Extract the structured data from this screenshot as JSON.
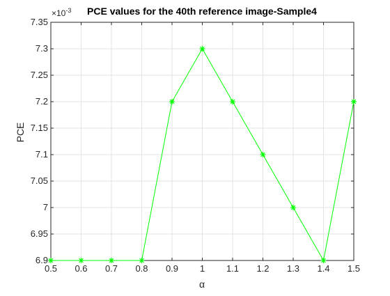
{
  "chart_data": {
    "type": "line",
    "title": "PCE values for the 40th reference image-Sample4",
    "xlabel": "α",
    "ylabel": "PCE",
    "y_exponent_label": "×10",
    "y_exponent_power": "-3",
    "xlim": [
      0.5,
      1.5
    ],
    "ylim": [
      6.9,
      7.35
    ],
    "grid": true,
    "x_ticks": [
      "0.5",
      "0.6",
      "0.7",
      "0.8",
      "0.9",
      "1",
      "1.1",
      "1.2",
      "1.3",
      "1.4",
      "1.5"
    ],
    "y_ticks": [
      "6.9",
      "6.95",
      "7",
      "7.05",
      "7.1",
      "7.15",
      "7.2",
      "7.25",
      "7.3",
      "7.35"
    ],
    "series": [
      {
        "color": "#00ff00",
        "marker": "asterisk",
        "x": [
          0.5,
          0.6,
          0.7,
          0.8,
          0.9,
          1.0,
          1.1,
          1.2,
          1.3,
          1.4,
          1.5
        ],
        "y": [
          6.9,
          6.9,
          6.9,
          6.9,
          7.2,
          7.3,
          7.2,
          7.1,
          7.0,
          6.9,
          7.2
        ]
      }
    ]
  }
}
